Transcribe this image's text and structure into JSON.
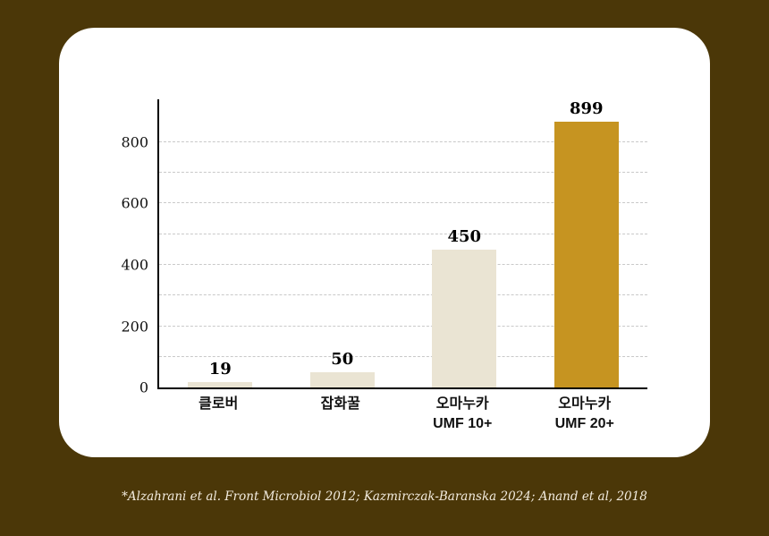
{
  "page": {
    "background_color": "#4b3708",
    "card_color": "#ffffff"
  },
  "chart_data": {
    "type": "bar",
    "title": "",
    "xlabel": "",
    "ylabel": "",
    "categories": [
      "클로버",
      "잡화꿀",
      "오마누카 UMF 10+",
      "오마누카 UMF 20+"
    ],
    "category_lines": [
      [
        "클로버"
      ],
      [
        "잡화꿀"
      ],
      [
        "오마누카",
        "UMF 10+"
      ],
      [
        "오마누카",
        "UMF 20+"
      ]
    ],
    "values": [
      19,
      50,
      450,
      899
    ],
    "value_labels": [
      "19",
      "50",
      "450",
      "899"
    ],
    "bar_colors": [
      "#eae4d3",
      "#eae4d3",
      "#eae4d3",
      "#c69421"
    ],
    "ylim": [
      0,
      940
    ],
    "yticks": [
      0,
      200,
      400,
      600,
      800
    ],
    "gridlines": [
      100,
      200,
      300,
      400,
      500,
      600,
      700,
      800
    ],
    "grid": "dashed-horizontal",
    "legend": "none"
  },
  "footnote": "*Alzahrani et al. Front Microbiol 2012; Kazmirczak-Baranska 2024; Anand et al, 2018"
}
